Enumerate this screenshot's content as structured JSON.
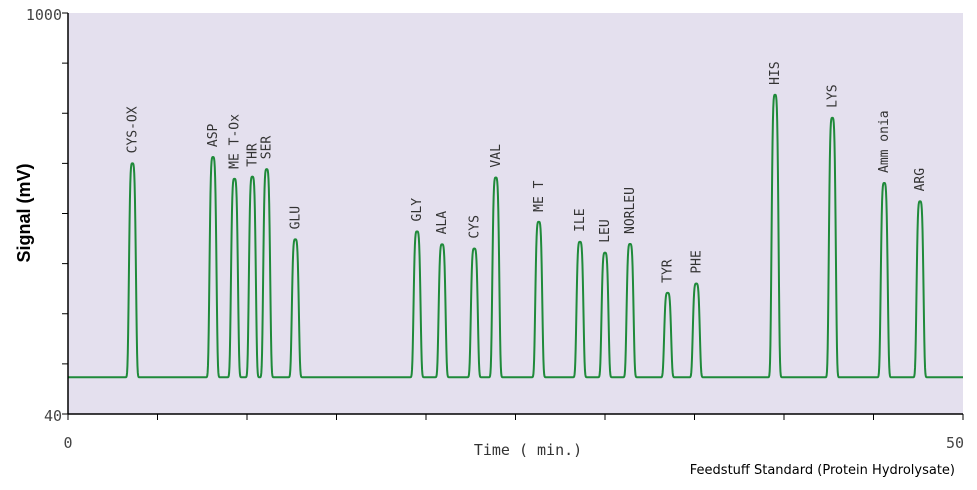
{
  "chart_data": {
    "type": "line",
    "title": "Feedstuff Standard (Protein Hydrolysate)",
    "xlabel": "Time ( min.)",
    "ylabel": "Signal (mV)",
    "xlim": [
      0,
      50
    ],
    "ylim": [
      40,
      1000
    ],
    "x_ticks": [
      "0",
      "50"
    ],
    "y_ticks": [
      "40",
      "1000"
    ],
    "baseline": 128,
    "colors": {
      "plot_bg": "#e4e0ee",
      "line": "#1f8a3a",
      "axis": "#000000"
    },
    "peaks": [
      {
        "name": "CYS-OX",
        "time": 3.6,
        "signal": 640
      },
      {
        "name": "ASP",
        "time": 8.1,
        "signal": 655
      },
      {
        "name": "ME T-Ox",
        "time": 9.3,
        "signal": 603
      },
      {
        "name": "THR",
        "time": 10.3,
        "signal": 608
      },
      {
        "name": "SER",
        "time": 11.1,
        "signal": 626
      },
      {
        "name": "GLU",
        "time": 12.7,
        "signal": 458
      },
      {
        "name": "GLY",
        "time": 19.5,
        "signal": 477
      },
      {
        "name": "ALA",
        "time": 20.9,
        "signal": 446
      },
      {
        "name": "CYS",
        "time": 22.7,
        "signal": 436
      },
      {
        "name": "VAL",
        "time": 23.9,
        "signal": 606
      },
      {
        "name": "ME T",
        "time": 26.3,
        "signal": 500
      },
      {
        "name": "ILE",
        "time": 28.6,
        "signal": 452
      },
      {
        "name": "LEU",
        "time": 30.0,
        "signal": 426
      },
      {
        "name": "NORLEU",
        "time": 31.4,
        "signal": 447
      },
      {
        "name": "TYR",
        "time": 33.5,
        "signal": 330
      },
      {
        "name": "PHE",
        "time": 35.1,
        "signal": 352
      },
      {
        "name": "HIS",
        "time": 39.5,
        "signal": 804
      },
      {
        "name": "LYS",
        "time": 42.7,
        "signal": 749
      },
      {
        "name": "Amm onia",
        "time": 45.6,
        "signal": 593
      },
      {
        "name": "ARG",
        "time": 47.6,
        "signal": 549
      }
    ]
  }
}
